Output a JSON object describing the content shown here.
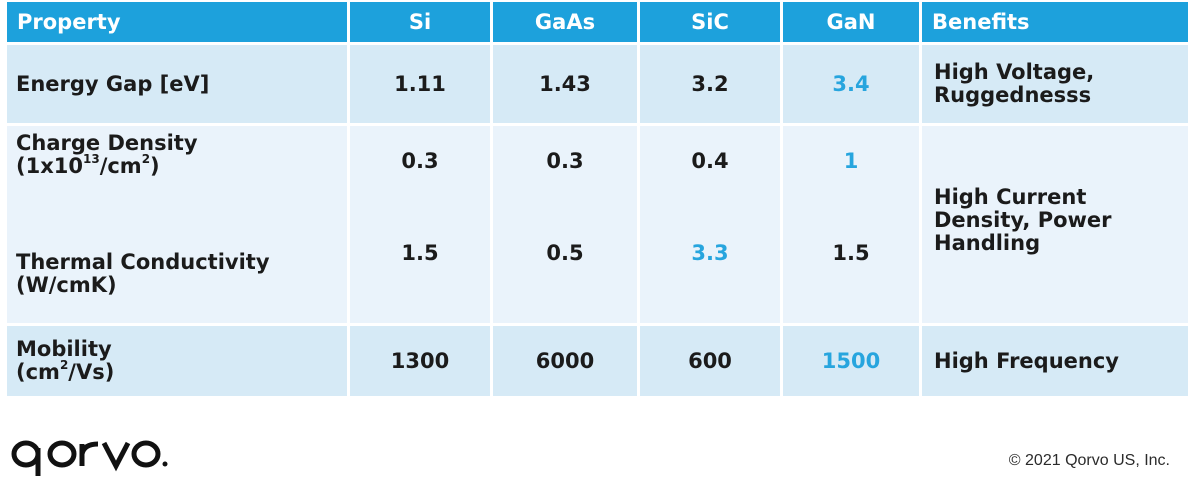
{
  "table": {
    "headers": [
      "Property",
      "Si",
      "GaAs",
      "SiC",
      "GaN",
      "Benefits"
    ],
    "rows": {
      "energy_gap": {
        "property": "Energy Gap [eV]",
        "si": "1.11",
        "gaas": "1.43",
        "sic": "3.2",
        "gan": "3.4",
        "benefit_line1": "High Voltage,",
        "benefit_line2": "Ruggednesss"
      },
      "charge_density": {
        "property_line1": "Charge Density",
        "property_line2_prefix": "(1x10",
        "property_line2_sup": "13",
        "property_line2_mid": "/cm",
        "property_line2_sup2": "2",
        "property_line2_suffix": ")",
        "si": "0.3",
        "gaas": "0.3",
        "sic": "0.4",
        "gan": "1"
      },
      "thermal_conductivity": {
        "property_line1": "Thermal Conductivity",
        "property_line2": "(W/cmK)",
        "si": "1.5",
        "gaas": "0.5",
        "sic": "3.3",
        "gan": "1.5"
      },
      "shared_benefit": {
        "line1": "High Current",
        "line2": "Density, Power",
        "line3": "Handling"
      },
      "mobility": {
        "property_line1": "Mobility",
        "property_line2_prefix": "(cm",
        "property_line2_sup": "2",
        "property_line2_suffix": "/Vs)",
        "si": "1300",
        "gaas": "6000",
        "sic": "600",
        "gan": "1500",
        "benefit": "High Frequency"
      }
    }
  },
  "footer": {
    "logo_text": "qorvo",
    "copyright": "© 2021 Qorvo US, Inc."
  },
  "colors": {
    "header_bg": "#1da1dc",
    "band_bg": "#d6eaf6",
    "pale_bg": "#eaf3fb",
    "highlight": "#27a5de"
  }
}
